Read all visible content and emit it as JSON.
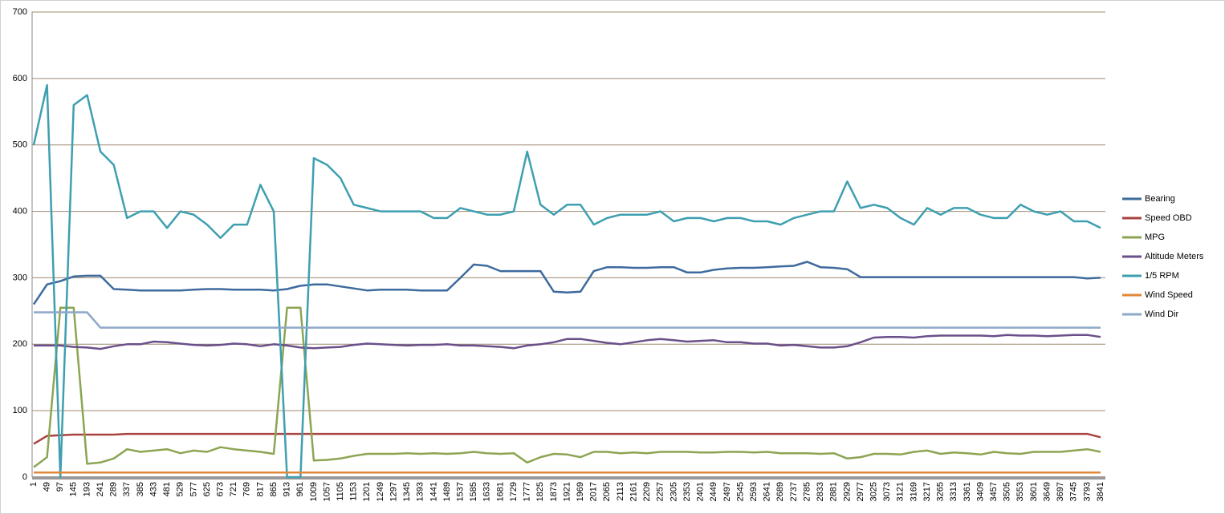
{
  "chart_data": {
    "type": "line",
    "categories": [
      1,
      49,
      97,
      145,
      193,
      241,
      289,
      337,
      385,
      433,
      481,
      529,
      577,
      625,
      673,
      721,
      769,
      817,
      865,
      913,
      961,
      1009,
      1057,
      1105,
      1153,
      1201,
      1249,
      1297,
      1345,
      1393,
      1441,
      1489,
      1537,
      1585,
      1633,
      1681,
      1729,
      1777,
      1825,
      1873,
      1921,
      1969,
      2017,
      2065,
      2113,
      2161,
      2209,
      2257,
      2305,
      2353,
      2401,
      2449,
      2497,
      2545,
      2593,
      2641,
      2689,
      2737,
      2785,
      2833,
      2881,
      2929,
      2977,
      3025,
      3073,
      3121,
      3169,
      3217,
      3265,
      3313,
      3361,
      3409,
      3457,
      3505,
      3553,
      3601,
      3649,
      3697,
      3745,
      3793,
      3841
    ],
    "series": [
      {
        "name": "Bearing",
        "color": "#3e6a9e",
        "values": [
          260,
          290,
          295,
          302,
          303,
          303,
          283,
          282,
          281,
          281,
          281,
          281,
          282,
          283,
          283,
          282,
          282,
          282,
          281,
          283,
          288,
          290,
          290,
          287,
          284,
          281,
          282,
          282,
          282,
          281,
          281,
          281,
          300,
          320,
          318,
          310,
          310,
          310,
          310,
          279,
          278,
          279,
          310,
          316,
          316,
          315,
          315,
          316,
          316,
          308,
          308,
          312,
          314,
          315,
          315,
          316,
          317,
          318,
          324,
          316,
          315,
          313,
          301,
          301,
          301,
          301,
          301,
          301,
          301,
          301,
          301,
          301,
          301,
          301,
          301,
          301,
          301,
          301,
          301,
          299,
          300
        ]
      },
      {
        "name": "Speed OBD",
        "color": "#a8433f",
        "values": [
          50,
          62,
          63,
          64,
          64,
          64,
          64,
          65,
          65,
          65,
          65,
          65,
          65,
          65,
          65,
          65,
          65,
          65,
          65,
          65,
          65,
          65,
          65,
          65,
          65,
          65,
          65,
          65,
          65,
          65,
          65,
          65,
          65,
          65,
          65,
          65,
          65,
          65,
          65,
          65,
          65,
          65,
          65,
          65,
          65,
          65,
          65,
          65,
          65,
          65,
          65,
          65,
          65,
          65,
          65,
          65,
          65,
          65,
          65,
          65,
          65,
          65,
          65,
          65,
          65,
          65,
          65,
          65,
          65,
          65,
          65,
          65,
          65,
          65,
          65,
          65,
          65,
          65,
          65,
          65,
          60
        ]
      },
      {
        "name": "MPG",
        "color": "#8ca552",
        "values": [
          15,
          30,
          255,
          255,
          20,
          22,
          28,
          42,
          38,
          40,
          42,
          36,
          40,
          38,
          45,
          42,
          40,
          38,
          35,
          255,
          255,
          25,
          26,
          28,
          32,
          35,
          35,
          35,
          36,
          35,
          36,
          35,
          36,
          38,
          36,
          35,
          36,
          22,
          30,
          35,
          34,
          30,
          38,
          38,
          36,
          37,
          36,
          38,
          38,
          38,
          37,
          37,
          38,
          38,
          37,
          38,
          36,
          36,
          36,
          35,
          36,
          28,
          30,
          35,
          35,
          34,
          38,
          40,
          35,
          37,
          36,
          34,
          38,
          36,
          35,
          38,
          38,
          38,
          40,
          42,
          38
        ]
      },
      {
        "name": "Altitude Meters",
        "color": "#6a4f8a",
        "values": [
          198,
          198,
          198,
          196,
          195,
          193,
          197,
          200,
          200,
          204,
          203,
          201,
          199,
          198,
          199,
          201,
          200,
          197,
          200,
          198,
          195,
          194,
          195,
          196,
          199,
          201,
          200,
          199,
          198,
          199,
          199,
          200,
          198,
          198,
          197,
          196,
          194,
          198,
          200,
          203,
          208,
          208,
          205,
          202,
          200,
          203,
          206,
          208,
          206,
          204,
          205,
          206,
          203,
          203,
          201,
          201,
          198,
          199,
          197,
          195,
          195,
          197,
          203,
          210,
          211,
          211,
          210,
          212,
          213,
          213,
          213,
          213,
          212,
          214,
          213,
          213,
          212,
          213,
          214,
          214,
          211
        ]
      },
      {
        "name": "1/5 RPM",
        "color": "#3e9fb0",
        "values": [
          500,
          590,
          0,
          560,
          575,
          490,
          470,
          390,
          400,
          400,
          375,
          400,
          395,
          380,
          360,
          380,
          380,
          440,
          400,
          0,
          0,
          480,
          470,
          450,
          410,
          405,
          400,
          400,
          400,
          400,
          390,
          390,
          405,
          400,
          395,
          395,
          400,
          490,
          410,
          395,
          410,
          410,
          380,
          390,
          395,
          395,
          395,
          400,
          385,
          390,
          390,
          385,
          390,
          390,
          385,
          385,
          380,
          390,
          395,
          400,
          400,
          445,
          405,
          410,
          405,
          390,
          380,
          405,
          395,
          405,
          405,
          395,
          390,
          390,
          410,
          400,
          395,
          400,
          385,
          385,
          375
        ]
      },
      {
        "name": "Wind Speed",
        "color": "#e08838",
        "values": [
          7,
          7,
          7,
          7,
          7,
          7,
          7,
          7,
          7,
          7,
          7,
          7,
          7,
          7,
          7,
          7,
          7,
          7,
          7,
          7,
          7,
          7,
          7,
          7,
          7,
          7,
          7,
          7,
          7,
          7,
          7,
          7,
          7,
          7,
          7,
          7,
          7,
          7,
          7,
          7,
          7,
          7,
          7,
          7,
          7,
          7,
          7,
          7,
          7,
          7,
          7,
          7,
          7,
          7,
          7,
          7,
          7,
          7,
          7,
          7,
          7,
          7,
          7,
          7,
          7,
          7,
          7,
          7,
          7,
          7,
          7,
          7,
          7,
          7,
          7,
          7,
          7,
          7,
          7,
          7,
          7
        ]
      },
      {
        "name": "Wind Dir",
        "color": "#8ea8c8",
        "values": [
          248,
          248,
          248,
          248,
          248,
          225,
          225,
          225,
          225,
          225,
          225,
          225,
          225,
          225,
          225,
          225,
          225,
          225,
          225,
          225,
          225,
          225,
          225,
          225,
          225,
          225,
          225,
          225,
          225,
          225,
          225,
          225,
          225,
          225,
          225,
          225,
          225,
          225,
          225,
          225,
          225,
          225,
          225,
          225,
          225,
          225,
          225,
          225,
          225,
          225,
          225,
          225,
          225,
          225,
          225,
          225,
          225,
          225,
          225,
          225,
          225,
          225,
          225,
          225,
          225,
          225,
          225,
          225,
          225,
          225,
          225,
          225,
          225,
          225,
          225,
          225,
          225,
          225,
          225,
          225,
          225
        ]
      }
    ],
    "ylim": [
      0,
      700
    ],
    "yticks": [
      0,
      100,
      200,
      300,
      400,
      500,
      600,
      700
    ],
    "grid": true,
    "legend": "right"
  }
}
